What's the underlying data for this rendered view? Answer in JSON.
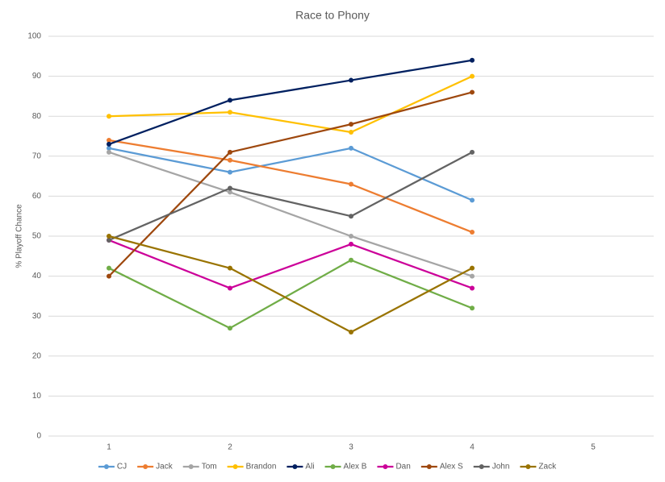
{
  "chart_data": {
    "type": "line",
    "title": "Race to Phony",
    "y_label": "% Playoff Chance",
    "categories": [
      "1",
      "2",
      "3",
      "4",
      "5"
    ],
    "series": [
      {
        "name": "CJ",
        "color": "#5b9bd5",
        "values": [
          72,
          66,
          72,
          59,
          null
        ]
      },
      {
        "name": "Jack",
        "color": "#ed7d31",
        "values": [
          74,
          69,
          63,
          51,
          null
        ]
      },
      {
        "name": "Tom",
        "color": "#a5a5a5",
        "values": [
          71,
          61,
          50,
          40,
          null
        ]
      },
      {
        "name": "Brandon",
        "color": "#ffc000",
        "values": [
          80,
          81,
          76,
          90,
          null
        ]
      },
      {
        "name": "Ali",
        "color": "#002060",
        "values": [
          73,
          84,
          89,
          94,
          null
        ]
      },
      {
        "name": "Alex B",
        "color": "#70ad47",
        "values": [
          42,
          27,
          44,
          32,
          null
        ]
      },
      {
        "name": "Dan",
        "color": "#cc0099",
        "values": [
          49,
          37,
          48,
          37,
          null
        ]
      },
      {
        "name": "Alex S",
        "color": "#9e480e",
        "values": [
          40,
          71,
          78,
          86,
          null
        ]
      },
      {
        "name": "John",
        "color": "#636363",
        "values": [
          49,
          62,
          55,
          71,
          null
        ]
      },
      {
        "name": "Zack",
        "color": "#997300",
        "values": [
          50,
          42,
          26,
          42,
          null
        ]
      }
    ],
    "ylim": [
      0,
      100
    ],
    "yticks": [
      0,
      10,
      20,
      30,
      40,
      50,
      60,
      70,
      80,
      90,
      100
    ],
    "grid": true,
    "legend": "bottom"
  }
}
